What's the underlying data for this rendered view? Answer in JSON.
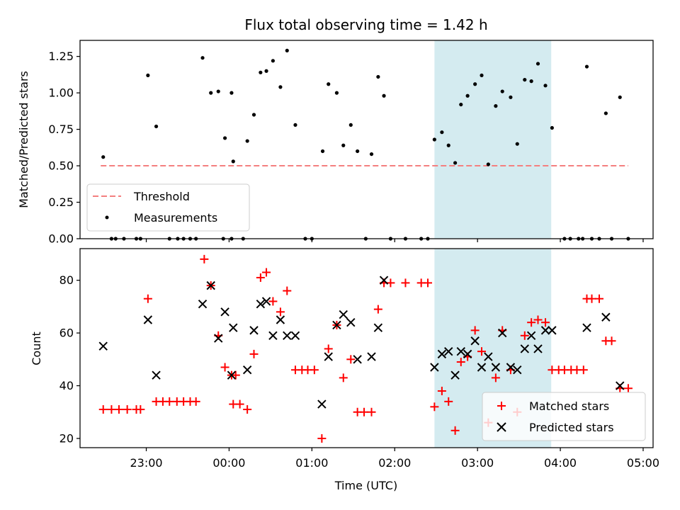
{
  "chart_data": [
    {
      "type": "scatter",
      "title": "Flux total observing time = 1.42 h",
      "ylabel": "Matched/Predicted stars",
      "ylim": [
        0,
        1.36
      ],
      "xlim_hours": [
        -1.8,
        5.12
      ],
      "yticks": [
        {
          "value": 0,
          "label": "0.00"
        },
        {
          "value": 0.25,
          "label": "0.25"
        },
        {
          "value": 0.5,
          "label": "0.50"
        },
        {
          "value": 0.75,
          "label": "0.75"
        },
        {
          "value": 1.0,
          "label": "1.00"
        },
        {
          "value": 1.25,
          "label": "1.25"
        }
      ],
      "highlight_span": {
        "x0": 2.48,
        "x1": 3.89,
        "color": "#d4ebf0"
      },
      "threshold": {
        "name": "Threshold",
        "y": 0.5,
        "x0": -1.55,
        "x1": 4.82,
        "color": "#f47f7f"
      },
      "measurements": {
        "name": "Measurements",
        "color": "#000000",
        "points": [
          [
            -1.52,
            0.56
          ],
          [
            -1.42,
            0
          ],
          [
            -1.37,
            0
          ],
          [
            -1.27,
            0
          ],
          [
            -1.12,
            0
          ],
          [
            -1.07,
            0
          ],
          [
            -0.98,
            1.12
          ],
          [
            -0.88,
            0.77
          ],
          [
            -0.72,
            0
          ],
          [
            -0.62,
            0
          ],
          [
            -0.55,
            0
          ],
          [
            -0.47,
            0
          ],
          [
            -0.4,
            0
          ],
          [
            -0.32,
            1.24
          ],
          [
            -0.22,
            1.0
          ],
          [
            -0.13,
            1.01
          ],
          [
            -0.05,
            0.69
          ],
          [
            0.03,
            1.0
          ],
          [
            -0.07,
            0
          ],
          [
            0.03,
            0
          ],
          [
            0.05,
            0.53
          ],
          [
            0.17,
            0
          ],
          [
            0.22,
            0.67
          ],
          [
            0.3,
            0.85
          ],
          [
            0.38,
            1.14
          ],
          [
            0.45,
            1.15
          ],
          [
            0.53,
            1.22
          ],
          [
            0.62,
            1.04
          ],
          [
            0.7,
            1.29
          ],
          [
            0.8,
            0.78
          ],
          [
            0.92,
            0
          ],
          [
            1.0,
            0
          ],
          [
            1.13,
            0.6
          ],
          [
            1.2,
            1.06
          ],
          [
            1.3,
            1.0
          ],
          [
            1.38,
            0.64
          ],
          [
            1.47,
            0.78
          ],
          [
            1.55,
            0.6
          ],
          [
            1.65,
            0
          ],
          [
            1.72,
            0.58
          ],
          [
            1.8,
            1.11
          ],
          [
            1.87,
            0.98
          ],
          [
            1.95,
            0
          ],
          [
            2.13,
            0
          ],
          [
            2.32,
            0
          ],
          [
            2.4,
            0
          ],
          [
            2.48,
            0.68
          ],
          [
            2.57,
            0.73
          ],
          [
            2.65,
            0.64
          ],
          [
            2.73,
            0.52
          ],
          [
            2.8,
            0.92
          ],
          [
            2.88,
            0.98
          ],
          [
            2.97,
            1.06
          ],
          [
            3.05,
            1.12
          ],
          [
            3.13,
            0.51
          ],
          [
            3.22,
            0.91
          ],
          [
            3.3,
            1.01
          ],
          [
            3.4,
            0.97
          ],
          [
            3.48,
            0.65
          ],
          [
            3.57,
            1.09
          ],
          [
            3.65,
            1.08
          ],
          [
            3.73,
            1.2
          ],
          [
            3.82,
            1.05
          ],
          [
            3.9,
            0.76
          ],
          [
            4.05,
            0
          ],
          [
            4.12,
            0
          ],
          [
            4.22,
            0
          ],
          [
            4.27,
            0
          ],
          [
            4.38,
            0
          ],
          [
            4.32,
            1.18
          ],
          [
            4.47,
            0
          ],
          [
            4.55,
            0.86
          ],
          [
            4.62,
            0
          ],
          [
            4.72,
            0.97
          ],
          [
            4.82,
            0
          ]
        ]
      }
    },
    {
      "type": "scatter",
      "xlabel": "Time (UTC)",
      "ylabel": "Count",
      "ylim": [
        16.5,
        92
      ],
      "xlim_hours": [
        -1.8,
        5.12
      ],
      "yticks": [
        {
          "value": 20,
          "label": "20"
        },
        {
          "value": 40,
          "label": "40"
        },
        {
          "value": 60,
          "label": "60"
        },
        {
          "value": 80,
          "label": "80"
        }
      ],
      "xticks": [
        {
          "value": -1,
          "label": "23:00"
        },
        {
          "value": 0,
          "label": "00:00"
        },
        {
          "value": 1,
          "label": "01:00"
        },
        {
          "value": 2,
          "label": "02:00"
        },
        {
          "value": 3,
          "label": "03:00"
        },
        {
          "value": 4,
          "label": "04:00"
        },
        {
          "value": 5,
          "label": "05:00"
        }
      ],
      "highlight_span": {
        "x0": 2.48,
        "x1": 3.89,
        "color": "#d4ebf0"
      },
      "series": [
        {
          "name": "Matched stars",
          "marker": "plus",
          "color": "#ff0000",
          "points": [
            [
              -1.52,
              31
            ],
            [
              -1.42,
              31
            ],
            [
              -1.33,
              31
            ],
            [
              -1.23,
              31
            ],
            [
              -1.12,
              31
            ],
            [
              -1.07,
              31
            ],
            [
              -0.98,
              73
            ],
            [
              -0.88,
              34
            ],
            [
              -0.8,
              34
            ],
            [
              -0.72,
              34
            ],
            [
              -0.63,
              34
            ],
            [
              -0.55,
              34
            ],
            [
              -0.47,
              34
            ],
            [
              -0.4,
              34
            ],
            [
              -0.3,
              88
            ],
            [
              -0.22,
              78
            ],
            [
              -0.13,
              59
            ],
            [
              -0.05,
              47
            ],
            [
              0.03,
              44
            ],
            [
              0.08,
              44
            ],
            [
              0.05,
              33
            ],
            [
              0.13,
              33
            ],
            [
              0.22,
              31
            ],
            [
              0.3,
              52
            ],
            [
              0.38,
              81
            ],
            [
              0.45,
              83
            ],
            [
              0.53,
              72
            ],
            [
              0.62,
              68
            ],
            [
              0.7,
              76
            ],
            [
              0.8,
              46
            ],
            [
              0.88,
              46
            ],
            [
              0.95,
              46
            ],
            [
              1.03,
              46
            ],
            [
              1.12,
              20
            ],
            [
              1.2,
              54
            ],
            [
              1.3,
              63
            ],
            [
              1.38,
              43
            ],
            [
              1.47,
              50
            ],
            [
              1.55,
              30
            ],
            [
              1.63,
              30
            ],
            [
              1.72,
              30
            ],
            [
              1.8,
              69
            ],
            [
              1.87,
              79
            ],
            [
              1.95,
              79
            ],
            [
              2.13,
              79
            ],
            [
              2.32,
              79
            ],
            [
              2.4,
              79
            ],
            [
              2.48,
              32
            ],
            [
              2.57,
              38
            ],
            [
              2.65,
              34
            ],
            [
              2.73,
              23
            ],
            [
              2.8,
              49
            ],
            [
              2.88,
              51
            ],
            [
              2.97,
              61
            ],
            [
              3.05,
              53
            ],
            [
              3.13,
              26
            ],
            [
              3.22,
              43
            ],
            [
              3.3,
              61
            ],
            [
              3.4,
              46
            ],
            [
              3.48,
              30
            ],
            [
              3.57,
              59
            ],
            [
              3.65,
              64
            ],
            [
              3.73,
              65
            ],
            [
              3.82,
              64
            ],
            [
              3.9,
              46
            ],
            [
              3.98,
              46
            ],
            [
              4.05,
              46
            ],
            [
              4.13,
              46
            ],
            [
              4.2,
              46
            ],
            [
              4.28,
              46
            ],
            [
              4.32,
              73
            ],
            [
              4.38,
              73
            ],
            [
              4.47,
              73
            ],
            [
              4.55,
              57
            ],
            [
              4.62,
              57
            ],
            [
              4.72,
              39
            ],
            [
              4.82,
              39
            ]
          ]
        },
        {
          "name": "Predicted stars",
          "marker": "x",
          "color": "#000000",
          "points": [
            [
              -1.52,
              55
            ],
            [
              -0.98,
              65
            ],
            [
              -0.88,
              44
            ],
            [
              -0.32,
              71
            ],
            [
              -0.22,
              78
            ],
            [
              -0.13,
              58
            ],
            [
              -0.05,
              68
            ],
            [
              0.03,
              44
            ],
            [
              0.05,
              62
            ],
            [
              0.22,
              46
            ],
            [
              0.3,
              61
            ],
            [
              0.38,
              71
            ],
            [
              0.45,
              72
            ],
            [
              0.53,
              59
            ],
            [
              0.62,
              65
            ],
            [
              0.7,
              59
            ],
            [
              0.8,
              59
            ],
            [
              1.12,
              33
            ],
            [
              1.2,
              51
            ],
            [
              1.3,
              63
            ],
            [
              1.38,
              67
            ],
            [
              1.47,
              64
            ],
            [
              1.55,
              50
            ],
            [
              1.72,
              51
            ],
            [
              1.8,
              62
            ],
            [
              1.87,
              80
            ],
            [
              2.48,
              47
            ],
            [
              2.57,
              52
            ],
            [
              2.65,
              53
            ],
            [
              2.73,
              44
            ],
            [
              2.8,
              53
            ],
            [
              2.88,
              52
            ],
            [
              2.97,
              57
            ],
            [
              3.05,
              47
            ],
            [
              3.13,
              51
            ],
            [
              3.22,
              47
            ],
            [
              3.3,
              60
            ],
            [
              3.4,
              47
            ],
            [
              3.48,
              46
            ],
            [
              3.57,
              54
            ],
            [
              3.65,
              59
            ],
            [
              3.73,
              54
            ],
            [
              3.82,
              61
            ],
            [
              3.9,
              61
            ],
            [
              4.32,
              62
            ],
            [
              4.55,
              66
            ],
            [
              4.72,
              40
            ]
          ]
        }
      ]
    }
  ]
}
